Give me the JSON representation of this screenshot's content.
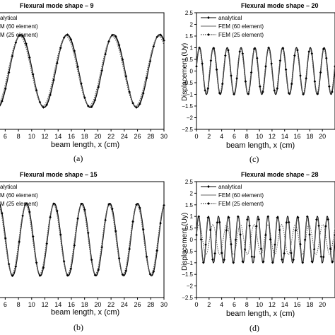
{
  "chart_data": [
    {
      "id": "a",
      "type": "line",
      "title": "Flexural mode shape – 9",
      "xlabel": "beam length, x (cm)",
      "ylabel": "",
      "caption": "(a)",
      "mode": 9,
      "xlim": [
        5,
        30
      ],
      "ylim": [
        -1.6,
        1.6
      ],
      "x_ticks": [
        6,
        8,
        10,
        12,
        14,
        16,
        18,
        20,
        22,
        24,
        26,
        28,
        30
      ],
      "y_ticks": [],
      "grid": false,
      "legend_position": "top-left",
      "legend": [
        "alytical",
        "M (60 element)",
        "M (25 element)"
      ],
      "series": [
        {
          "name": "alytical",
          "style": "solid-diamond"
        },
        {
          "name": "M (60 element)",
          "style": "solid"
        },
        {
          "name": "M (25 element)",
          "style": "dotted-diamond"
        }
      ]
    },
    {
      "id": "b",
      "type": "line",
      "title": "Flexural mode shape – 15",
      "xlabel": "beam length, x (cm)",
      "ylabel": "",
      "caption": "(b)",
      "mode": 15,
      "xlim": [
        5,
        30
      ],
      "ylim": [
        -1.6,
        1.6
      ],
      "x_ticks": [
        6,
        8,
        10,
        12,
        14,
        16,
        18,
        20,
        22,
        24,
        26,
        28,
        30
      ],
      "y_ticks": [],
      "grid": false,
      "legend_position": "top-left",
      "legend": [
        "alytical",
        "M (60 element)",
        "M (25 element)"
      ],
      "series": [
        {
          "name": "alytical",
          "style": "solid-diamond"
        },
        {
          "name": "M (60 element)",
          "style": "solid"
        },
        {
          "name": "M (25 element)",
          "style": "dotted-diamond"
        }
      ]
    },
    {
      "id": "c",
      "type": "line",
      "title": "Flexural mode shape – 20",
      "xlabel": "beam length, x (cm)",
      "ylabel": "Displacement (Uy)",
      "caption": "(c)",
      "mode": 20,
      "xlim": [
        0,
        22
      ],
      "ylim": [
        -2.5,
        2.5
      ],
      "x_ticks": [
        0,
        2,
        4,
        6,
        8,
        10,
        12,
        14,
        16,
        18,
        20
      ],
      "y_ticks": [
        2.5,
        2,
        1.5,
        1,
        0.5,
        0,
        -0.5,
        -1,
        -1.5,
        -2,
        -2.5
      ],
      "y_tick_labels": [
        "2.5",
        "2",
        "1.5",
        "1",
        "0.5",
        "0",
        "−0.5",
        "−1",
        "−1.5",
        "−2",
        "−2.5"
      ],
      "grid": false,
      "legend_position": "top-left",
      "legend": [
        "analytical",
        "FEM (60 element)",
        "FEM (25 element)"
      ],
      "series": [
        {
          "name": "analytical",
          "style": "solid-diamond"
        },
        {
          "name": "FEM (60 element)",
          "style": "solid"
        },
        {
          "name": "FEM (25 element)",
          "style": "dotted-diamond"
        }
      ]
    },
    {
      "id": "d",
      "type": "line",
      "title": "Flexural mode shape – 28",
      "xlabel": "beam length, x (cm)",
      "ylabel": "Displacement (Uy)",
      "caption": "(d)",
      "mode": 28,
      "xlim": [
        0,
        22
      ],
      "ylim": [
        -2.5,
        2.5
      ],
      "x_ticks": [
        0,
        2,
        4,
        6,
        8,
        10,
        12,
        14,
        16,
        18,
        20
      ],
      "y_ticks": [
        2.5,
        2,
        1.5,
        1,
        0.5,
        0,
        -0.5,
        -1,
        -1.5,
        -2,
        -2.5
      ],
      "y_tick_labels": [
        "2.5",
        "2",
        "1.5",
        "1",
        "0.5",
        "0",
        "−0.5",
        "−1",
        "−1.5",
        "−2",
        "−2.5"
      ],
      "grid": false,
      "legend_position": "top-left",
      "legend": [
        "analytical",
        "FEM (60 element)",
        "FEM (25 element)"
      ],
      "series": [
        {
          "name": "analytical",
          "style": "solid-diamond"
        },
        {
          "name": "FEM (60 element)",
          "style": "solid"
        },
        {
          "name": "FEM (25 element)",
          "style": "dotted-diamond"
        }
      ]
    }
  ]
}
